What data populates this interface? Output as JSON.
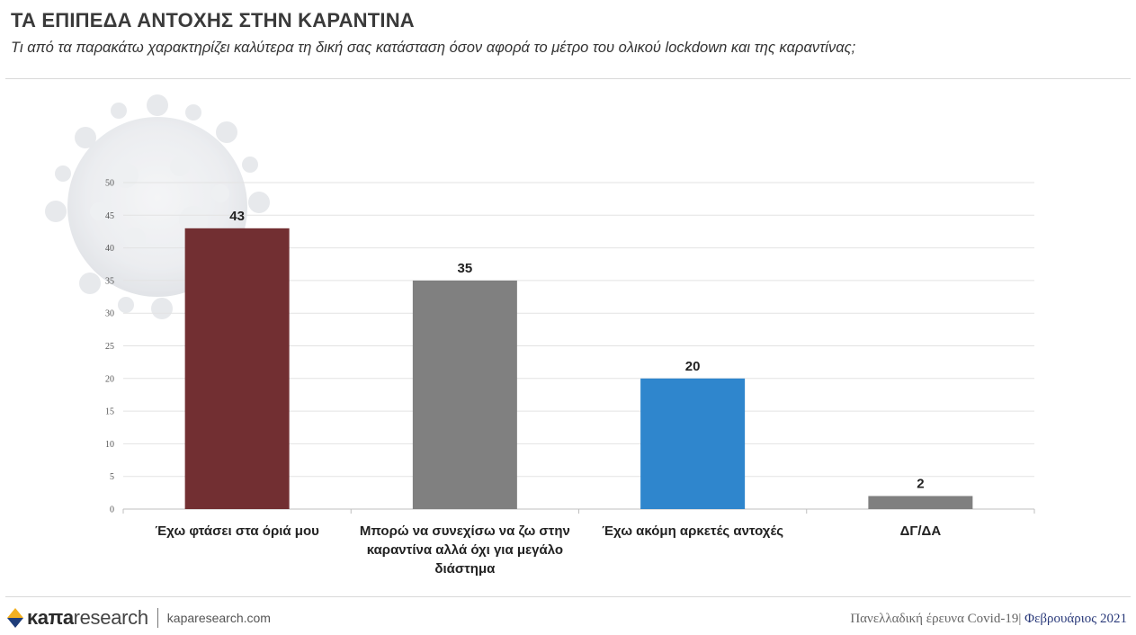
{
  "header": {
    "title": "ΤΑ ΕΠΙΠΕΔΑ ΑΝΤΟΧΗΣ ΣΤΗΝ ΚΑΡΑΝΤΙΝΑ",
    "subtitle": "Τι από τα παρακάτω χαρακτηρίζει καλύτερα τη δική σας κατάσταση όσον αφορά το μέτρο του ολικού lockdown και της καραντίνας;"
  },
  "chart_data": {
    "type": "bar",
    "categories": [
      "Έχω φτάσει στα όριά μου",
      "Μπορώ να συνεχίσω να ζω στην καραντίνα αλλά όχι για μεγάλο διάστημα",
      "Έχω ακόμη αρκετές αντοχές",
      "ΔΓ/ΔΑ"
    ],
    "category_lines": [
      [
        "Έχω φτάσει στα όριά μου"
      ],
      [
        "Μπορώ να συνεχίσω να ζω στην",
        "καραντίνα αλλά όχι για μεγάλο",
        "διάστημα"
      ],
      [
        "Έχω ακόμη αρκετές αντοχές"
      ],
      [
        "ΔΓ/ΔΑ"
      ]
    ],
    "values": [
      43,
      35,
      20,
      2
    ],
    "colors": [
      "#722f32",
      "#808080",
      "#2f86cd",
      "#808080"
    ],
    "ylim": [
      0,
      50
    ],
    "yticks": [
      "0",
      "5",
      "10",
      "15",
      "20",
      "25",
      "30",
      "35",
      "40",
      "45",
      "50"
    ],
    "grid": true,
    "xlabel": "",
    "ylabel": ""
  },
  "footer": {
    "brand_bold": "κaπa",
    "brand_light": "research",
    "site": "kaparesearch.com",
    "survey": "Πανελλαδική έρευνα Covid-19|",
    "date": "Φεβρουάριος 2021"
  }
}
